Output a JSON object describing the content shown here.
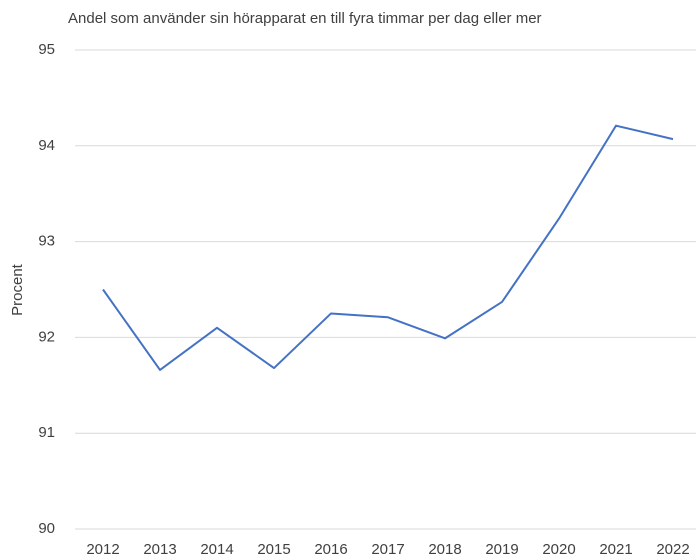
{
  "chart_data": {
    "type": "line",
    "title": "Andel som använder sin hörapparat en till fyra timmar per dag eller mer",
    "y_label": "Procent",
    "categories": [
      "2012",
      "2013",
      "2014",
      "2015",
      "2016",
      "2017",
      "2018",
      "2019",
      "2020",
      "2021",
      "2022"
    ],
    "series": [
      {
        "name": "Andel",
        "color": "#4472c4",
        "values": [
          92.5,
          91.66,
          92.1,
          91.68,
          92.25,
          92.21,
          91.99,
          92.37,
          93.24,
          94.21,
          94.07
        ]
      }
    ],
    "ylim": [
      90,
      95
    ],
    "yticks": [
      90,
      91,
      92,
      93,
      94,
      95
    ],
    "grid": true
  }
}
